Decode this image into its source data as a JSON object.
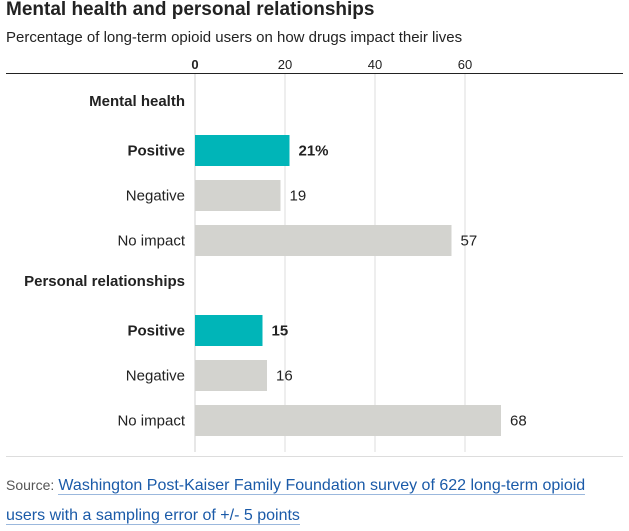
{
  "chart_data": {
    "type": "bar",
    "orientation": "horizontal",
    "title": "Mental health and personal relationships",
    "subtitle": "Percentage of long-term opioid users on how drugs impact their lives",
    "xlim": [
      0,
      70
    ],
    "x_ticks": [
      "0",
      "20",
      "40",
      "60"
    ],
    "grid": true,
    "groups": [
      {
        "name": "Mental health",
        "bars": [
          {
            "label": "Positive",
            "value": 21,
            "display": "21%",
            "highlight": true
          },
          {
            "label": "Negative",
            "value": 19,
            "display": "19",
            "highlight": false
          },
          {
            "label": "No impact",
            "value": 57,
            "display": "57",
            "highlight": false
          }
        ]
      },
      {
        "name": "Personal relationships",
        "bars": [
          {
            "label": "Positive",
            "value": 15,
            "display": "15",
            "highlight": true
          },
          {
            "label": "Negative",
            "value": 16,
            "display": "16",
            "highlight": false
          },
          {
            "label": "No impact",
            "value": 68,
            "display": "68",
            "highlight": false
          }
        ]
      }
    ],
    "colors": {
      "highlight": "#00b5b8",
      "normal": "#d3d3cf",
      "grid": "#dcdcdc"
    }
  },
  "source": {
    "label": "Source:",
    "text": "Washington Post-Kaiser Family Foundation survey of 622 long-term opioid users with a sampling error of +/- 5 points"
  }
}
